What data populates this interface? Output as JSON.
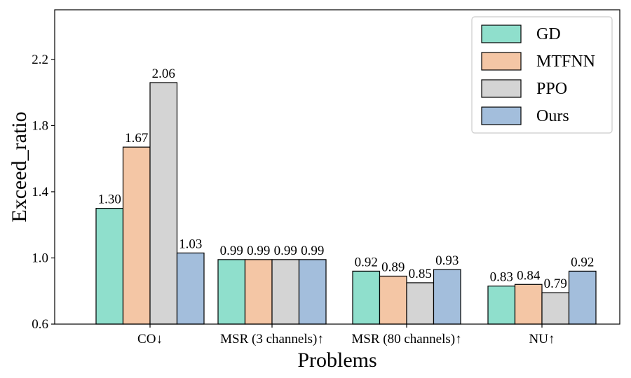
{
  "chart_data": {
    "type": "bar",
    "title": "",
    "xlabel": "Problems",
    "ylabel": "Exceed_ratio",
    "categories": [
      "CO↓",
      "MSR (3 channels)↑",
      "MSR (80 channels)↑",
      "NU↑"
    ],
    "series": [
      {
        "name": "GD",
        "color": "#8fdfcc",
        "values": [
          1.3,
          0.99,
          0.92,
          0.83
        ],
        "labels": [
          "1.30",
          "0.99",
          "0.92",
          "0.83"
        ]
      },
      {
        "name": "MTFNN",
        "color": "#f4c6a5",
        "values": [
          1.67,
          0.99,
          0.89,
          0.84
        ],
        "labels": [
          "1.67",
          "0.99",
          "0.89",
          "0.84"
        ]
      },
      {
        "name": "PPO",
        "color": "#d4d4d4",
        "values": [
          2.06,
          0.99,
          0.85,
          0.79
        ],
        "labels": [
          "2.06",
          "0.99",
          "0.85",
          "0.79"
        ]
      },
      {
        "name": "Ours",
        "color": "#a3bedc",
        "values": [
          1.03,
          0.99,
          0.93,
          0.92
        ],
        "labels": [
          "1.03",
          "0.99",
          "0.93",
          "0.92"
        ]
      }
    ],
    "ylim": [
      0.6,
      2.5
    ],
    "yticks": [
      0.6,
      1.0,
      1.4,
      1.8,
      2.2
    ],
    "ytick_labels": [
      "0.6",
      "1.0",
      "1.4",
      "1.8",
      "2.2"
    ],
    "grid": false,
    "legend_position": "top-right"
  }
}
